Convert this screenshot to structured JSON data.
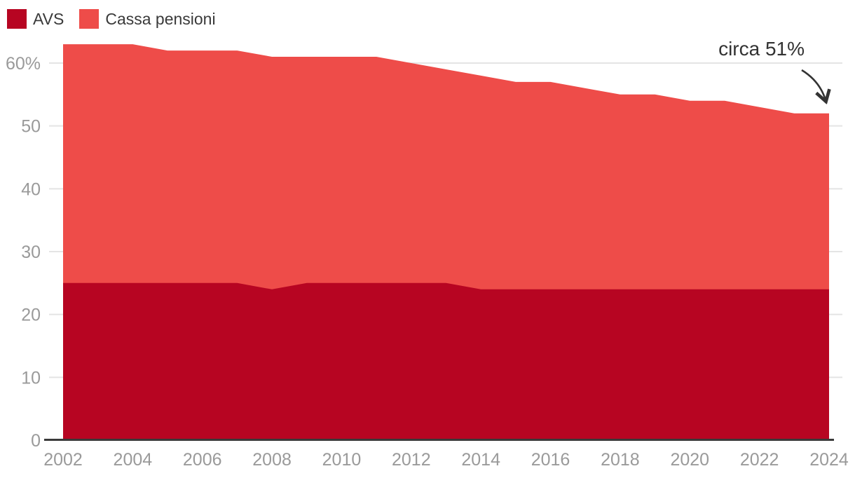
{
  "legend": {
    "items": [
      {
        "label": "AVS",
        "color": "#b70522"
      },
      {
        "label": "Cassa pensioni",
        "color": "#ee4c49"
      }
    ]
  },
  "annotation": {
    "text": "circa 51%"
  },
  "colors": {
    "background": "#ffffff",
    "grid": "#e4e4e4",
    "axis_line": "#3a3a3a",
    "tick_label": "#9a9a9a",
    "annotation_text": "#333333",
    "arrow": "#333333"
  },
  "chart_data": {
    "type": "area",
    "stacked": true,
    "title": "",
    "xlabel": "",
    "ylabel": "",
    "x": [
      2002,
      2003,
      2004,
      2005,
      2006,
      2007,
      2008,
      2009,
      2010,
      2011,
      2012,
      2013,
      2014,
      2015,
      2016,
      2017,
      2018,
      2019,
      2020,
      2021,
      2022,
      2023,
      2024
    ],
    "series": [
      {
        "name": "AVS",
        "color": "#b70522",
        "values": [
          25,
          25,
          25,
          25,
          25,
          25,
          24,
          25,
          25,
          25,
          25,
          25,
          24,
          24,
          24,
          24,
          24,
          24,
          24,
          24,
          24,
          24,
          24
        ]
      },
      {
        "name": "Cassa pensioni",
        "color": "#ee4c49",
        "values": [
          38,
          38,
          38,
          37,
          37,
          37,
          37,
          36,
          36,
          36,
          35,
          34,
          34,
          33,
          33,
          32,
          31,
          31,
          30,
          30,
          29,
          28,
          28
        ]
      }
    ],
    "stacked_totals": [
      63,
      63,
      63,
      62,
      62,
      62,
      61,
      61,
      61,
      61,
      60,
      59,
      58,
      57,
      57,
      56,
      55,
      55,
      54,
      54,
      53,
      52,
      52
    ],
    "ylim": [
      0,
      63
    ],
    "yticks": [
      {
        "value": 0,
        "label": "0"
      },
      {
        "value": 10,
        "label": "10"
      },
      {
        "value": 20,
        "label": "20"
      },
      {
        "value": 30,
        "label": "30"
      },
      {
        "value": 40,
        "label": "40"
      },
      {
        "value": 50,
        "label": "50"
      },
      {
        "value": 60,
        "label": "60%"
      }
    ],
    "xtick_years": [
      2002,
      2004,
      2006,
      2008,
      2010,
      2012,
      2014,
      2016,
      2018,
      2020,
      2022,
      2024
    ],
    "grid": true,
    "legend_position": "top-left",
    "annotation": {
      "text": "circa 51%",
      "target_year": 2024,
      "target_value": 52
    }
  }
}
